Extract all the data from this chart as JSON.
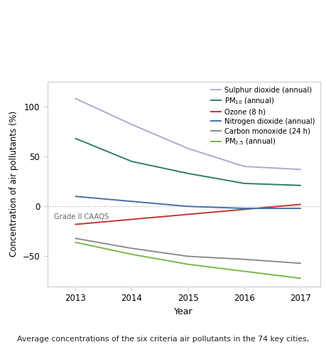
{
  "years": [
    2013,
    2014,
    2015,
    2016,
    2017
  ],
  "series": {
    "sulphur_dioxide": {
      "label": "Sulphur dioxide (annual)",
      "color": "#b0a8d0",
      "values": [
        108,
        82,
        58,
        40,
        37
      ],
      "lw": 1.4
    },
    "pm10": {
      "label": "PM$_{10}$ (annual)",
      "color": "#2e7d6e",
      "values": [
        68,
        45,
        33,
        23,
        21
      ],
      "lw": 1.4
    },
    "ozone": {
      "label": "Ozone (8 h)",
      "color": "#c0392b",
      "values": [
        -18,
        -13,
        -8,
        -3,
        2
      ],
      "lw": 1.4
    },
    "no2": {
      "label": "Nitrogen dioxide (annual)",
      "color": "#4472a8",
      "values": [
        10,
        5,
        0,
        -2,
        -2
      ],
      "lw": 1.4
    },
    "co": {
      "label": "Carbon monoxide (24 h)",
      "color": "#8c8c8c",
      "values": [
        -32,
        -42,
        -50,
        -53,
        -57
      ],
      "lw": 1.4
    },
    "pm25": {
      "label": "PM$_{2.5}$ (annual)",
      "color": "#7ab648",
      "values": [
        -36,
        -48,
        -58,
        -65,
        -72
      ],
      "lw": 1.4
    }
  },
  "xlabel": "Year",
  "ylabel": "Concentration of air pollutants (%)",
  "ylim": [
    -80,
    125
  ],
  "yticks": [
    -50,
    0,
    50,
    100
  ],
  "xticks": [
    2013,
    2014,
    2015,
    2016,
    2017
  ],
  "grade_ii_label": "Grade II CAAQS",
  "caption": "Average concentrations of the six criteria air pollutants in the 74 key cities,",
  "background_color": "#ffffff",
  "plot_bg": "#ffffff",
  "dashed_zero_color": "#aaaaaa",
  "spine_color": "#cccccc"
}
